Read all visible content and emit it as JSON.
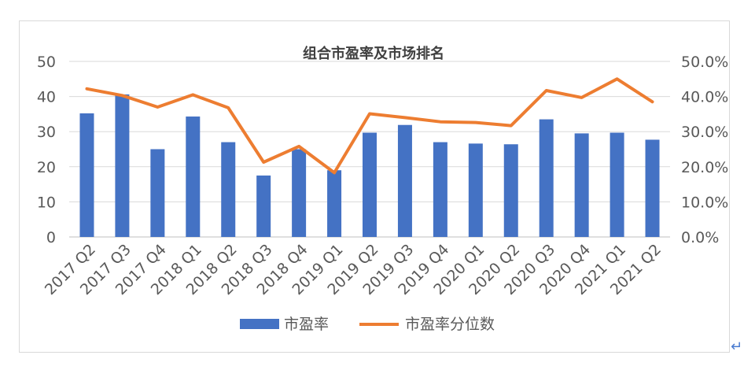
{
  "chart_data": {
    "type": "bar",
    "title": "组合市盈率及市场排名",
    "categories": [
      "2017 Q2",
      "2017 Q3",
      "2017 Q4",
      "2018 Q1",
      "2018 Q2",
      "2018 Q3",
      "2018 Q4",
      "2019 Q1",
      "2019 Q2",
      "2019 Q3",
      "2019 Q4",
      "2020 Q1",
      "2020 Q2",
      "2020 Q3",
      "2020 Q4",
      "2021 Q1",
      "2021 Q2"
    ],
    "series": [
      {
        "name": "市盈率",
        "type": "bar",
        "axis": "left",
        "color": "#4472c4",
        "values": [
          35.2,
          40.6,
          25.0,
          34.3,
          27.0,
          17.5,
          25.0,
          19.0,
          29.7,
          31.9,
          27.0,
          26.6,
          26.4,
          33.5,
          29.5,
          29.7,
          27.7
        ]
      },
      {
        "name": "市盈率分位数",
        "type": "line",
        "axis": "right",
        "color": "#ed7d31",
        "values": [
          42.2,
          40.3,
          37.0,
          40.5,
          36.8,
          21.3,
          25.8,
          18.3,
          35.1,
          34.0,
          32.8,
          32.6,
          31.7,
          41.7,
          39.7,
          45.0,
          38.5
        ]
      }
    ],
    "y_left": {
      "min": 0,
      "max": 50,
      "ticks": [
        "0",
        "10",
        "20",
        "30",
        "40",
        "50"
      ]
    },
    "y_right": {
      "min": 0,
      "max": 50,
      "ticks": [
        "0.0%",
        "10.0%",
        "20.0%",
        "30.0%",
        "40.0%",
        "50.0%"
      ]
    },
    "grid": true,
    "legend": "bottom"
  }
}
